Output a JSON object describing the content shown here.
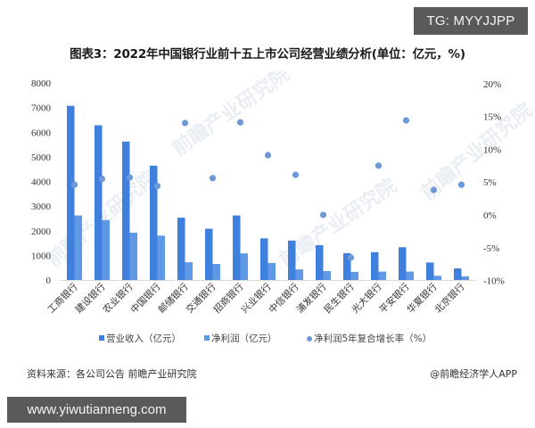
{
  "header": {
    "tg_badge": "TG: MYYJJPP",
    "title": "图表3：2022年中国银行业前十五上市公司经营业绩分析(单位：亿元，%)"
  },
  "footer": {
    "source": "资料来源：各公司公告 前瞻产业研究院",
    "credit": "@前瞻经济学人APP",
    "url_badge": "www.yiwutianneng.com"
  },
  "watermark": "前瞻产业研究院",
  "colors": {
    "revenue": "#3f80de",
    "net_profit": "#5f99e6",
    "cagr": "#6d9ad6",
    "axis": "#d9d9d9",
    "badge_bg": "#5a5a5a"
  },
  "chart_data": {
    "type": "bar",
    "title": "图表3：2022年中国银行业前十五上市公司经营业绩分析(单位：亿元，%)",
    "xlabel": "",
    "ylabel": "亿元",
    "y2label": "%",
    "ylim": [
      0,
      8000
    ],
    "y2lim": [
      -10,
      20
    ],
    "yticks": [
      0,
      1000,
      2000,
      3000,
      4000,
      5000,
      6000,
      7000,
      8000
    ],
    "y2ticks": [
      "-10%",
      "-5%",
      "0%",
      "5%",
      "10%",
      "15%",
      "20%"
    ],
    "grid": false,
    "legend_position": "bottom",
    "categories": [
      "工商银行",
      "建设银行",
      "农业银行",
      "中国银行",
      "邮储银行",
      "交通银行",
      "招商银行",
      "兴业银行",
      "中信银行",
      "浦发银行",
      "民生银行",
      "光大银行",
      "平安银行",
      "华夏银行",
      "北京银行"
    ],
    "series": [
      {
        "name": "营业收入（亿元）",
        "type": "bar",
        "axis": "left",
        "values": [
          7070,
          6280,
          5620,
          4640,
          2530,
          2080,
          2620,
          1690,
          1600,
          1410,
          1090,
          1130,
          1330,
          710,
          470
        ]
      },
      {
        "name": "净利润（亿元）",
        "type": "bar",
        "axis": "left",
        "values": [
          2620,
          2430,
          1920,
          1800,
          720,
          650,
          1080,
          690,
          430,
          360,
          330,
          340,
          340,
          170,
          150
        ]
      },
      {
        "name": "净利润5年复合增长率（%）",
        "type": "scatter",
        "axis": "right",
        "values": [
          4.6,
          5.5,
          5.7,
          4.4,
          14.0,
          5.6,
          14.1,
          9.1,
          6.1,
          0.0,
          -6.5,
          7.5,
          14.4,
          3.8,
          4.6
        ]
      }
    ]
  }
}
